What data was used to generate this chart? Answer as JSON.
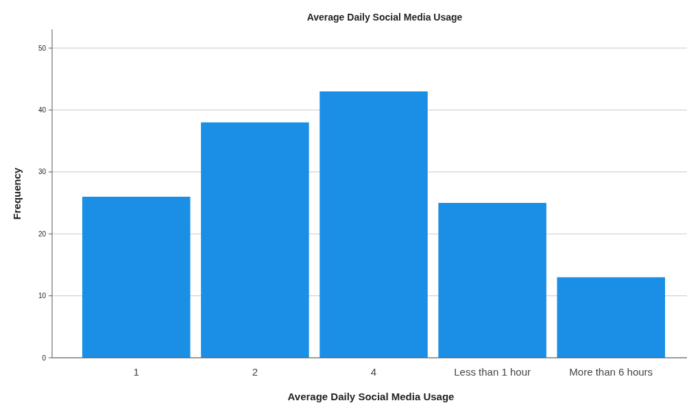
{
  "chart_data": {
    "type": "bar",
    "title": "Average Daily Social Media Usage",
    "xlabel": "Average Daily Social Media Usage",
    "ylabel": "Frequency",
    "categories": [
      "1",
      "2",
      "4",
      "Less than 1 hour",
      "More than 6 hours"
    ],
    "values": [
      26,
      38,
      43,
      25,
      13
    ],
    "color": "#1b8fe6",
    "ylim": [
      0,
      53
    ],
    "yticks": [
      0,
      10,
      20,
      30,
      40,
      50
    ],
    "grid": "y"
  }
}
